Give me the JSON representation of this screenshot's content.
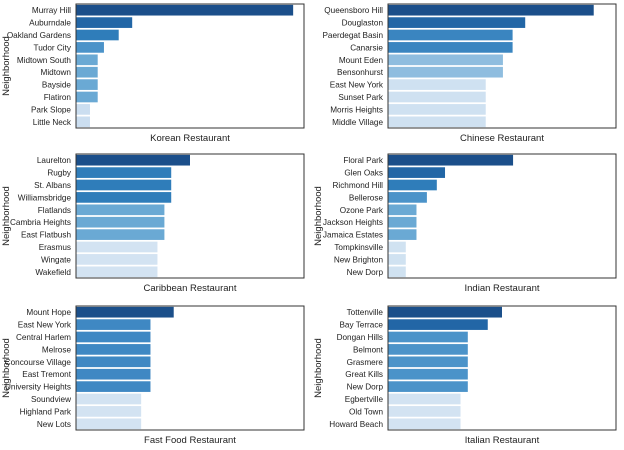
{
  "chart_data": [
    {
      "type": "bar",
      "orientation": "horizontal",
      "xlabel": "Korean Restaurant",
      "ylabel": "Neighborhood",
      "categories": [
        "Murray Hill",
        "Auburndale",
        "Oakland Gardens",
        "Tudor City",
        "Midtown South",
        "Midtown",
        "Bayside",
        "Flatiron",
        "Park Slope",
        "Little Neck"
      ],
      "values": [
        0.2222,
        0.0575,
        0.0437,
        0.0286,
        0.0222,
        0.0222,
        0.0222,
        0.0222,
        0.0143,
        0.0143
      ],
      "xlim": [
        0,
        0.2333
      ],
      "grid": false,
      "colors": [
        "#1b4f8a",
        "#2266a6",
        "#2f7dba",
        "#4b93c9",
        "#6aa9d4",
        "#6aa9d4",
        "#6aa9d4",
        "#6aa9d4",
        "#cbdef0",
        "#cbdef0"
      ]
    },
    {
      "type": "bar",
      "orientation": "horizontal",
      "xlabel": "Chinese Restaurant",
      "ylabel": "",
      "categories": [
        "Queensboro Hill",
        "Douglaston",
        "Paerdegat Basin",
        "Canarsie",
        "Mount Eden",
        "Bensonhurst",
        "East New York",
        "Sunset Park",
        "Morris Heights",
        "Middle Village"
      ],
      "values": [
        0.2105,
        0.1404,
        0.1275,
        0.1275,
        0.1176,
        0.1176,
        0.1,
        0.1,
        0.1,
        0.1
      ],
      "xlim": [
        0,
        0.2333
      ],
      "grid": false,
      "colors": [
        "#1b4f8a",
        "#2266a6",
        "#3a85c0",
        "#3a85c0",
        "#8fbddf",
        "#8fbddf",
        "#cfe1f1",
        "#cfe1f1",
        "#cfe1f1",
        "#cfe1f1"
      ]
    },
    {
      "type": "bar",
      "orientation": "horizontal",
      "xlabel": "Caribbean Restaurant",
      "ylabel": "Neighborhood",
      "categories": [
        "Laurelton",
        "Rugby",
        "St. Albans",
        "Williamsbridge",
        "Flatlands",
        "Cambria Heights",
        "East Flatbush",
        "Erasmus",
        "Wingate",
        "Wakefield"
      ],
      "values": [
        0.3684,
        0.3077,
        0.3077,
        0.3077,
        0.2857,
        0.2857,
        0.2857,
        0.2632,
        0.2632,
        0.2632
      ],
      "xlim": [
        0,
        0.7368
      ],
      "grid": false,
      "colors": [
        "#1b4f8a",
        "#2f7dba",
        "#2f7dba",
        "#2f7dba",
        "#6aa9d4",
        "#6aa9d4",
        "#6aa9d4",
        "#d3e3f2",
        "#d3e3f2",
        "#d3e3f2"
      ]
    },
    {
      "type": "bar",
      "orientation": "horizontal",
      "xlabel": "Indian Restaurant",
      "ylabel": "Neighborhood",
      "categories": [
        "Floral Park",
        "Glen Oaks",
        "Richmond Hill",
        "Bellerose",
        "Ozone Park",
        "Jackson Heights",
        "Jamaica Estates",
        "Tompkinsville",
        "New Brighton",
        "New Dorp"
      ],
      "values": [
        0.1463,
        0.0667,
        0.0571,
        0.0455,
        0.0333,
        0.0333,
        0.0333,
        0.0208,
        0.0208,
        0.0208
      ],
      "xlim": [
        0,
        0.2667
      ],
      "grid": false,
      "colors": [
        "#1b4f8a",
        "#2266a6",
        "#2f7dba",
        "#4b93c9",
        "#6aa9d4",
        "#6aa9d4",
        "#6aa9d4",
        "#d0e2f1",
        "#d0e2f1",
        "#d0e2f1"
      ]
    },
    {
      "type": "bar",
      "orientation": "horizontal",
      "xlabel": "Fast Food Restaurant",
      "ylabel": "Neighborhood",
      "categories": [
        "Mount Hope",
        "East New York",
        "Central Harlem",
        "Melrose",
        "Concourse Village",
        "East Tremont",
        "University Heights",
        "Soundview",
        "Highland Park",
        "New Lots"
      ],
      "values": [
        0.1875,
        0.1429,
        0.1429,
        0.1429,
        0.1429,
        0.1429,
        0.1429,
        0.125,
        0.125,
        0.125
      ],
      "xlim": [
        0,
        0.4375
      ],
      "grid": false,
      "colors": [
        "#1b4f8a",
        "#3f88c3",
        "#3f88c3",
        "#3f88c3",
        "#3f88c3",
        "#3f88c3",
        "#3f88c3",
        "#d3e3f2",
        "#d3e3f2",
        "#d3e3f2"
      ]
    },
    {
      "type": "bar",
      "orientation": "horizontal",
      "xlabel": "Italian Restaurant",
      "ylabel": "Neighborhood",
      "categories": [
        "Tottenville",
        "Bay Terrace",
        "Dongan Hills",
        "Belmont",
        "Grasmere",
        "Great Kills",
        "New Dorp",
        "Egbertville",
        "Old Town",
        "Howard Beach"
      ],
      "values": [
        0.2857,
        0.25,
        0.2,
        0.2,
        0.2,
        0.2,
        0.2,
        0.1818,
        0.1818,
        0.1818
      ],
      "xlim": [
        0,
        0.5714
      ],
      "grid": false,
      "colors": [
        "#1b4f8a",
        "#2266a6",
        "#4b93c9",
        "#4b93c9",
        "#4b93c9",
        "#4b93c9",
        "#4b93c9",
        "#d3e3f2",
        "#d3e3f2",
        "#d3e3f2"
      ]
    }
  ]
}
